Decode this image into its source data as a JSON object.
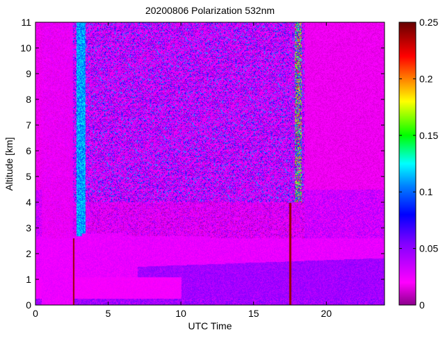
{
  "chart_data": {
    "type": "heatmap",
    "title": "20200806 Polarization 532nm",
    "xlabel": "UTC Time",
    "ylabel": "Altitude [km]",
    "xlim": [
      0,
      24
    ],
    "ylim": [
      0,
      11
    ],
    "x_ticks": [
      0,
      5,
      10,
      15,
      20
    ],
    "x_tick_labels": [
      "0",
      "5",
      "10",
      "15",
      "20"
    ],
    "y_ticks": [
      0,
      1,
      2,
      3,
      4,
      5,
      6,
      7,
      8,
      9,
      10,
      11
    ],
    "y_tick_labels": [
      "0",
      "1",
      "2",
      "3",
      "4",
      "5",
      "6",
      "7",
      "8",
      "9",
      "10",
      "11"
    ],
    "colorbar": {
      "min": 0,
      "max": 0.25,
      "ticks": [
        0,
        0.05,
        0.1,
        0.15,
        0.2,
        0.25
      ],
      "tick_labels": [
        "0",
        "0.05",
        "0.1",
        "0.15",
        "0.2",
        "0.25"
      ],
      "colormap": "hsv",
      "colors": [
        "#8b008b",
        "#ff00ff",
        "#0000ff",
        "#00ffff",
        "#00ff00",
        "#ffff00",
        "#ff0000",
        "#660000"
      ]
    },
    "data_start_hour": 0,
    "data_end_hour": 24,
    "features": {
      "boundary_layer_top_km": 2.7,
      "boundary_layer_value": 0.02,
      "free_troposphere_noise_value": 0.05,
      "high_depolarization_column_hours": [
        2.8,
        3.4
      ],
      "high_depolarization_column_value": 0.11,
      "high_depolarization_column_altitude_km": [
        2.6,
        11
      ],
      "near_surface_blue_band_hours": [
        7,
        24
      ],
      "near_surface_blue_band_altitude_km": [
        0,
        1.5
      ],
      "gap_lines_hours": [
        2.6,
        17.5
      ],
      "cloud_column_hours": [
        17.8,
        18.3
      ]
    }
  }
}
